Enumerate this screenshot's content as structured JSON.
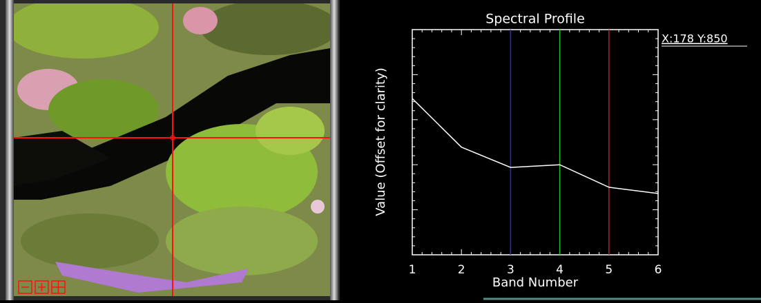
{
  "chart_data": {
    "type": "line",
    "title": "Spectral Profile",
    "x_label": "Band Number",
    "y_label": "Value (Offset for clarity)",
    "x": [
      1,
      2,
      3,
      4,
      5,
      6
    ],
    "values": [
      3.47,
      2.39,
      1.94,
      2.0,
      1.5,
      1.36
    ],
    "color": "#ffffff",
    "xlim": [
      1,
      6
    ],
    "xticks": [
      1,
      2,
      3,
      4,
      5,
      6
    ],
    "ylim": [
      0,
      5
    ],
    "yticks": [
      0,
      1,
      2,
      3,
      4,
      5
    ],
    "band_lines": [
      {
        "x": 3,
        "color": "#2a2ad0"
      },
      {
        "x": 4,
        "color": "#20c020"
      },
      {
        "x": 5,
        "color": "#c01818"
      }
    ]
  },
  "cursor_label": "X:178 Y:850"
}
